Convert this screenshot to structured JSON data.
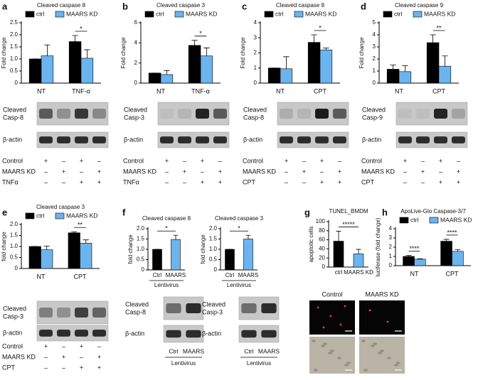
{
  "chart_data": [
    {
      "type": "bar",
      "title": "Cleaved caspase 8",
      "y_label": "Fold change",
      "categories": [
        "NT",
        "TNF-α"
      ],
      "series": [
        {
          "name": "ctrl",
          "color": "#000000",
          "values": [
            1.0,
            1.72
          ],
          "errors": [
            0,
            0.25
          ]
        },
        {
          "name": "MAARS KD",
          "color": "#6cb4ee",
          "values": [
            1.13,
            1.03
          ],
          "errors": [
            0.45,
            0.35
          ]
        }
      ],
      "ylim": [
        0,
        2.5
      ],
      "yticks": [
        0,
        0.5,
        {
          "value": 1,
          "label": "1.0"
        },
        1.5,
        {
          "value": 2,
          "label": "2.0"
        },
        2.5
      ],
      "annotations": [
        "*"
      ]
    },
    {
      "type": "bar",
      "title": "Cleaved caspase 3",
      "y_label": "Fold change",
      "categories": [
        "NT",
        "TNF-α"
      ],
      "series": [
        {
          "name": "ctrl",
          "color": "#000000",
          "values": [
            1.0,
            3.75
          ],
          "errors": [
            0,
            0.5
          ]
        },
        {
          "name": "MAARS KD",
          "color": "#6cb4ee",
          "values": [
            0.85,
            2.7
          ],
          "errors": [
            0.4,
            0.8
          ]
        }
      ],
      "ylim": [
        0,
        6
      ],
      "yticks": [
        0,
        2,
        4,
        6
      ],
      "annotations": [
        "*"
      ]
    },
    {
      "type": "bar",
      "title": "Cleaved caspase 8",
      "y_label": "Fold change",
      "categories": [
        "NT",
        "CPT"
      ],
      "series": [
        {
          "name": "ctrl",
          "color": "#000000",
          "values": [
            1.0,
            2.7
          ],
          "errors": [
            0,
            0.5
          ]
        },
        {
          "name": "MAARS KD",
          "color": "#6cb4ee",
          "values": [
            0.95,
            2.2
          ],
          "errors": [
            0.8,
            0.12
          ]
        }
      ],
      "ylim": [
        0,
        4
      ],
      "yticks": [
        0,
        1,
        2,
        3,
        4
      ],
      "annotations": [
        "*"
      ]
    },
    {
      "type": "bar",
      "title": "Cleaved caspase 9",
      "y_label": "Fold change",
      "categories": [
        "NT",
        "CPT"
      ],
      "series": [
        {
          "name": "ctrl",
          "color": "#000000",
          "values": [
            1.15,
            3.35
          ],
          "errors": [
            0.35,
            0.65
          ]
        },
        {
          "name": "MAARS KD",
          "color": "#6cb4ee",
          "values": [
            0.95,
            1.4
          ],
          "errors": [
            0.5,
            0.85
          ]
        }
      ],
      "ylim": [
        0,
        5
      ],
      "yticks": [
        0,
        1,
        2,
        3,
        4,
        5
      ],
      "annotations": [
        "**"
      ]
    },
    {
      "type": "bar",
      "title": "Cleaved caspase 3",
      "y_label": "fold change",
      "categories": [
        "NT",
        "CPT"
      ],
      "series": [
        {
          "name": "ctrl",
          "color": "#000000",
          "values": [
            1.0,
            1.62
          ],
          "errors": [
            0,
            0.05
          ]
        },
        {
          "name": "MAARS KD",
          "color": "#6cb4ee",
          "values": [
            0.85,
            1.15
          ],
          "errors": [
            0.17,
            0.15
          ]
        }
      ],
      "ylim": [
        0,
        2
      ],
      "yticks": [
        0,
        0.5,
        {
          "value": 1,
          "label": "1.0"
        },
        1.5,
        {
          "value": 2,
          "label": "2.0"
        }
      ],
      "annotations": [
        "**"
      ]
    },
    {
      "type": "bar",
      "title": "Cleaved caspase 8",
      "y_label": "fold change",
      "categories": [
        "Ctrl",
        "MAARS"
      ],
      "x_label": "Lentivirus",
      "values": [
        1.0,
        1.48
      ],
      "errors": [
        0,
        0.2
      ],
      "colors": [
        "#000000",
        "#6cb4ee"
      ],
      "ylim": [
        0,
        2
      ],
      "yticks": [
        0,
        0.5,
        {
          "value": 1,
          "label": "1.0"
        },
        1.5,
        {
          "value": 2,
          "label": "2.0"
        }
      ],
      "annotations": [
        "*"
      ]
    },
    {
      "type": "bar",
      "title": "Cleaved caspase 3",
      "y_label": "fold change",
      "categories": [
        "Ctrl",
        "MAARS"
      ],
      "x_label": "Lentivirus",
      "values": [
        1.0,
        1.5
      ],
      "errors": [
        0,
        0.18
      ],
      "colors": [
        "#000000",
        "#6cb4ee"
      ],
      "ylim": [
        0,
        2
      ],
      "yticks": [
        0,
        0.5,
        {
          "value": 1,
          "label": "1.0"
        },
        1.5,
        {
          "value": 2,
          "label": "2.0"
        }
      ],
      "annotations": [
        "*"
      ]
    },
    {
      "type": "bar",
      "title": "TUNEL_BMDM",
      "y_label": "apoptotic cells",
      "categories": [
        "ctrl",
        "MAARS KD"
      ],
      "values": [
        57,
        29
      ],
      "errors": [
        22,
        10
      ],
      "colors": [
        "#000000",
        "#6cb4ee"
      ],
      "ylim": [
        0,
        100
      ],
      "yticks": [
        0,
        20,
        40,
        60,
        80,
        100
      ],
      "annotations": [
        "*****"
      ]
    },
    {
      "type": "bar",
      "title": "ApoLive-Glo Caspase-3/7",
      "y_label": "luciferase (fold change)",
      "categories": [
        "NT",
        "CPT"
      ],
      "series": [
        {
          "name": "ctrl",
          "color": "#000000",
          "values": [
            1.0,
            2.65
          ],
          "errors": [
            0.1,
            0.2
          ]
        },
        {
          "name": "MAARS KD",
          "color": "#6cb4ee",
          "values": [
            0.7,
            1.55
          ],
          "errors": [
            0.05,
            0.2
          ]
        }
      ],
      "ylim": [
        0,
        4
      ],
      "yticks": [
        0,
        1,
        2,
        3,
        4
      ],
      "annotations": [
        "****",
        "****"
      ]
    }
  ],
  "panels": [
    {
      "letter": "a",
      "blot": {
        "labels": [
          [
            "Cleaved",
            "Casp-8"
          ],
          [
            "β-actin"
          ]
        ],
        "rows": [
          [
            "Control",
            "+",
            "–",
            "+",
            "–"
          ],
          [
            "MAARS KD",
            "–",
            "+",
            "–",
            "+"
          ],
          [
            "TNFα",
            "–",
            "–",
            "+",
            "+"
          ]
        ]
      }
    },
    {
      "letter": "b",
      "blot": {
        "labels": [
          [
            "Cleaved",
            "Casp-3"
          ],
          [
            "β-actin"
          ]
        ],
        "rows": [
          [
            "Control",
            "+",
            "–",
            "+",
            "–"
          ],
          [
            "MAARS KD",
            "–",
            "+",
            "–",
            "+"
          ],
          [
            "TNFα",
            "–",
            "–",
            "+",
            "+"
          ]
        ]
      }
    },
    {
      "letter": "c",
      "blot": {
        "labels": [
          [
            "Cleaved",
            "Casp-8"
          ],
          [
            "β-actin"
          ]
        ],
        "rows": [
          [
            "Control",
            "+",
            "–",
            "+",
            "–"
          ],
          [
            "MAARS KD",
            "–",
            "+",
            "–",
            "+"
          ],
          [
            "CPT",
            "–",
            "–",
            "+",
            "+"
          ]
        ]
      }
    },
    {
      "letter": "d",
      "blot": {
        "labels": [
          [
            "Cleaved",
            "Casp-9"
          ],
          [
            "β-actin"
          ]
        ],
        "rows": [
          [
            "Control",
            "+",
            "–",
            "+",
            "–"
          ],
          [
            "MAARS KD",
            "–",
            "+",
            "–",
            "+"
          ],
          [
            "CPT",
            "–",
            "–",
            "+",
            "+"
          ]
        ]
      }
    },
    {
      "letter": "e",
      "blot": {
        "labels": [
          [
            "Cleaved",
            "Casp-3"
          ],
          [
            "β-actin"
          ]
        ],
        "rows": [
          [
            "Control",
            "+",
            "–",
            "+",
            "–"
          ],
          [
            "MAARS KD",
            "–",
            "+",
            "–",
            "+"
          ],
          [
            "CPT",
            "–",
            "–",
            "+",
            "+"
          ]
        ]
      }
    },
    {
      "letter": "f",
      "blots": [
        {
          "labels": [
            [
              "Cleaved",
              "Casp-8"
            ],
            [
              "β-actin"
            ]
          ],
          "lanes": [
            "Ctrl",
            "MAARS"
          ],
          "group": "Lentivirus"
        },
        {
          "labels": [
            [
              "Cleaved",
              "Casp-3"
            ],
            [
              "β-actin"
            ]
          ],
          "lanes": [
            "Ctrl",
            "MAARS"
          ],
          "group": "Lentivirus"
        }
      ]
    },
    {
      "letter": "g",
      "images": [
        "Control",
        "MAARS KD"
      ]
    },
    {
      "letter": "h"
    }
  ]
}
